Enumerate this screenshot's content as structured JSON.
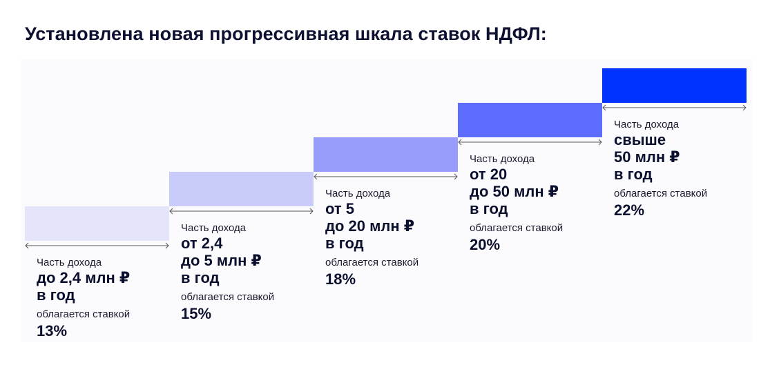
{
  "title": "Установлена новая прогрессивная шкала ставок НДФЛ:",
  "steps": [
    {
      "prefix": "Часть дохода",
      "lines": [
        "до 2,4 млн ₽",
        "в год"
      ],
      "rate_label": "облагается ставкой",
      "rate": "13%",
      "color": "#e4e5fb"
    },
    {
      "prefix": "Часть дохода",
      "lines": [
        "от 2,4",
        "до 5 млн ₽",
        "в год"
      ],
      "rate_label": "облагается ставкой",
      "rate": "15%",
      "color": "#c9cbfb"
    },
    {
      "prefix": "Часть дохода",
      "lines": [
        "от 5",
        "до 20 млн ₽",
        "в год"
      ],
      "rate_label": "облагается ставкой",
      "rate": "18%",
      "color": "#989dfb"
    },
    {
      "prefix": "Часть дохода",
      "lines": [
        "от 20",
        "до 50 млн ₽",
        "в год"
      ],
      "rate_label": "облагается ставкой",
      "rate": "20%",
      "color": "#5d6cfd"
    },
    {
      "prefix": "Часть дохода",
      "lines": [
        "свыше",
        "50 млн ₽",
        "в год"
      ],
      "rate_label": "облагается ставкой",
      "rate": "22%",
      "color": "#0032ff"
    }
  ]
}
